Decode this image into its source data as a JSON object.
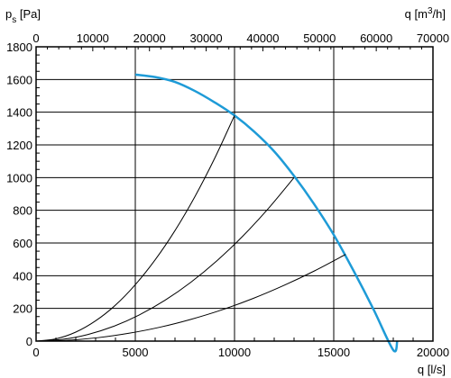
{
  "chart_data": {
    "type": "line",
    "title": "",
    "ylabel": {
      "main": "p",
      "sub": "s",
      "unit": " [Pa]"
    },
    "xlabel_bottom": "q [l/s]",
    "xlabel_top": {
      "main": "q [m",
      "sup": "3",
      "tail": "/h]"
    },
    "xlim": [
      0,
      20000
    ],
    "ylim": [
      0,
      1800
    ],
    "x_ticks_bottom": [
      0,
      5000,
      10000,
      15000,
      20000
    ],
    "x_ticks_top": [
      0,
      10000,
      20000,
      30000,
      40000,
      50000,
      60000,
      70000
    ],
    "y_ticks": [
      0,
      200,
      400,
      600,
      800,
      1000,
      1200,
      1400,
      1600,
      1800
    ],
    "grid": true,
    "series": [
      {
        "color": "#1e9bd7",
        "x": [
          5000,
          6000,
          7000,
          8000,
          9000,
          10000,
          11000,
          12000,
          13000,
          14000,
          15000,
          16000,
          17000,
          18000,
          18200
        ],
        "y": [
          1630,
          1615,
          1585,
          1530,
          1460,
          1380,
          1280,
          1160,
          1010,
          840,
          650,
          430,
          195,
          -55,
          0
        ]
      },
      {
        "x": [
          0,
          1000,
          2000,
          3000,
          4000,
          5000,
          6000,
          7000,
          8000,
          9000,
          10000
        ],
        "y": [
          0,
          14,
          55,
          124,
          220,
          345,
          497,
          676,
          883,
          1118,
          1380
        ]
      },
      {
        "x": [
          0,
          1300,
          2600,
          3900,
          5200,
          6500,
          7800,
          9100,
          10400,
          11700,
          13000
        ],
        "y": [
          0,
          10,
          40,
          90,
          160,
          250,
          360,
          490,
          640,
          810,
          1000
        ]
      },
      {
        "x": [
          0,
          1560,
          3120,
          4680,
          6240,
          7800,
          9360,
          10920,
          12480,
          14040,
          15600
        ],
        "y": [
          0,
          5,
          21,
          48,
          85,
          133,
          191,
          260,
          340,
          430,
          530
        ]
      }
    ]
  }
}
